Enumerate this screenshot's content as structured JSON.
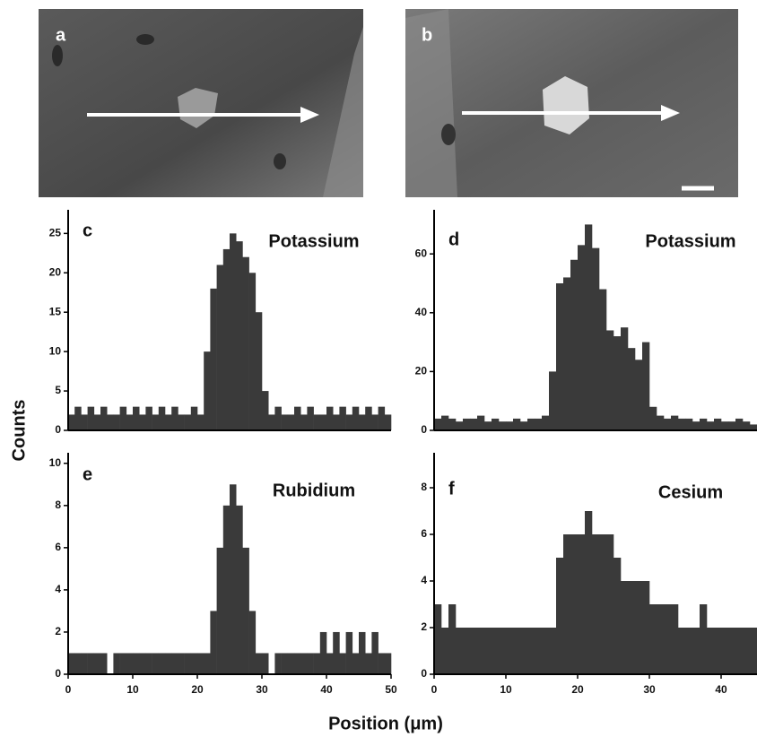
{
  "images": [
    {
      "label": "a"
    },
    {
      "label": "b"
    }
  ],
  "ylabel": "Counts",
  "xlabel": "Position (μm)",
  "chart_data": [
    {
      "type": "histogram",
      "label": "c",
      "title": "Potassium",
      "color": "#3a3a3a",
      "bins": [
        0,
        1,
        2,
        3,
        4,
        5,
        6,
        7,
        8,
        9,
        10,
        11,
        12,
        13,
        14,
        15,
        16,
        17,
        18,
        19,
        20,
        21,
        22,
        23,
        24,
        25,
        26,
        27,
        28,
        29,
        30,
        31,
        32,
        33,
        34,
        35,
        36,
        37,
        38,
        39,
        40,
        41,
        42,
        43,
        44,
        45,
        46,
        47,
        48,
        49,
        50
      ],
      "values": [
        2,
        3,
        2,
        3,
        2,
        3,
        2,
        2,
        3,
        2,
        3,
        2,
        3,
        2,
        3,
        2,
        3,
        2,
        2,
        3,
        2,
        10,
        18,
        21,
        23,
        25,
        24,
        22,
        20,
        15,
        5,
        2,
        3,
        2,
        2,
        3,
        2,
        3,
        2,
        2,
        3,
        2,
        3,
        2,
        3,
        2,
        3,
        2,
        3,
        2
      ],
      "xlim": [
        0,
        50
      ],
      "ylim": [
        0,
        28
      ],
      "yticks": [
        0,
        5,
        10,
        15,
        20,
        25
      ]
    },
    {
      "type": "histogram",
      "label": "d",
      "title": "Potassium",
      "color": "#3a3a3a",
      "bins": [
        0,
        1,
        2,
        3,
        4,
        5,
        6,
        7,
        8,
        9,
        10,
        11,
        12,
        13,
        14,
        15,
        16,
        17,
        18,
        19,
        20,
        21,
        22,
        23,
        24,
        25,
        26,
        27,
        28,
        29,
        30,
        31,
        32,
        33,
        34,
        35,
        36,
        37,
        38,
        39,
        40,
        41,
        42,
        43,
        44,
        45
      ],
      "values": [
        4,
        5,
        4,
        3,
        4,
        4,
        5,
        3,
        4,
        3,
        3,
        4,
        3,
        4,
        4,
        5,
        20,
        50,
        52,
        58,
        63,
        70,
        62,
        48,
        34,
        32,
        35,
        28,
        24,
        30,
        8,
        5,
        4,
        5,
        4,
        4,
        3,
        4,
        3,
        4,
        3,
        3,
        4,
        3,
        2
      ],
      "xlim": [
        0,
        45
      ],
      "ylim": [
        0,
        75
      ],
      "yticks": [
        0,
        20,
        40,
        60
      ]
    },
    {
      "type": "histogram",
      "label": "e",
      "title": "Rubidium",
      "color": "#3a3a3a",
      "bins": [
        0,
        1,
        2,
        3,
        4,
        5,
        6,
        7,
        8,
        9,
        10,
        11,
        12,
        13,
        14,
        15,
        16,
        17,
        18,
        19,
        20,
        21,
        22,
        23,
        24,
        25,
        26,
        27,
        28,
        29,
        30,
        31,
        32,
        33,
        34,
        35,
        36,
        37,
        38,
        39,
        40,
        41,
        42,
        43,
        44,
        45,
        46,
        47,
        48,
        49,
        50
      ],
      "values": [
        1,
        1,
        1,
        1,
        1,
        1,
        0,
        1,
        1,
        1,
        1,
        1,
        1,
        1,
        1,
        1,
        1,
        1,
        1,
        1,
        1,
        1,
        3,
        6,
        8,
        9,
        8,
        6,
        3,
        1,
        1,
        0,
        1,
        1,
        1,
        1,
        1,
        1,
        1,
        2,
        1,
        2,
        1,
        2,
        1,
        2,
        1,
        2,
        1,
        1
      ],
      "xlim": [
        0,
        50
      ],
      "ylim": [
        0,
        10.5
      ],
      "yticks": [
        0,
        2,
        4,
        6,
        8,
        10
      ],
      "xticks": [
        0,
        10,
        20,
        30,
        40,
        50
      ]
    },
    {
      "type": "histogram",
      "label": "f",
      "title": "Cesium",
      "color": "#3a3a3a",
      "bins": [
        0,
        1,
        2,
        3,
        4,
        5,
        6,
        7,
        8,
        9,
        10,
        11,
        12,
        13,
        14,
        15,
        16,
        17,
        18,
        19,
        20,
        21,
        22,
        23,
        24,
        25,
        26,
        27,
        28,
        29,
        30,
        31,
        32,
        33,
        34,
        35,
        36,
        37,
        38,
        39,
        40,
        41,
        42,
        43,
        44,
        45
      ],
      "values": [
        3,
        2,
        3,
        2,
        2,
        2,
        2,
        2,
        2,
        2,
        2,
        2,
        2,
        2,
        2,
        2,
        2,
        5,
        6,
        6,
        6,
        7,
        6,
        6,
        6,
        5,
        4,
        4,
        4,
        4,
        3,
        3,
        3,
        3,
        2,
        2,
        2,
        3,
        2,
        2,
        2,
        2,
        2,
        2,
        2
      ],
      "xlim": [
        0,
        45
      ],
      "ylim": [
        0,
        9.5
      ],
      "yticks": [
        0,
        2,
        4,
        6,
        8
      ],
      "xticks": [
        0,
        10,
        20,
        30,
        40
      ]
    }
  ]
}
